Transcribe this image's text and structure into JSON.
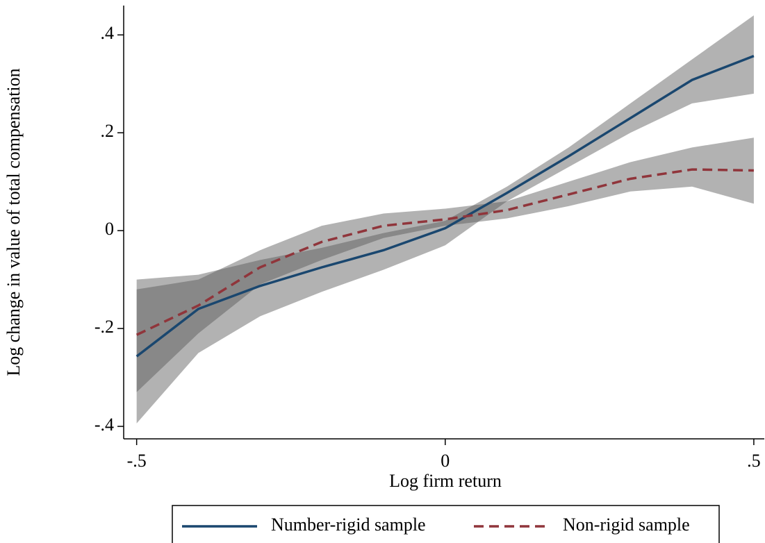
{
  "chart_data": {
    "type": "line",
    "x_label": "Log firm return",
    "y_label": "Log change in value of  total compensation",
    "x": [
      -0.5,
      -0.4,
      -0.3,
      -0.2,
      -0.1,
      0,
      0.1,
      0.2,
      0.3,
      0.4,
      0.5
    ],
    "series": [
      {
        "name": "Number-rigid sample",
        "color": "#1a476f",
        "dash": "solid",
        "values": [
          -0.257,
          -0.16,
          -0.113,
          -0.075,
          -0.04,
          0.005,
          0.077,
          0.152,
          0.23,
          0.308,
          0.357
        ],
        "lower": [
          -0.394,
          -0.25,
          -0.175,
          -0.125,
          -0.08,
          -0.03,
          0.06,
          0.13,
          0.2,
          0.26,
          0.28
        ],
        "upper": [
          -0.1,
          -0.09,
          -0.06,
          -0.035,
          -0.005,
          0.02,
          0.09,
          0.17,
          0.26,
          0.35,
          0.44
        ]
      },
      {
        "name": "Non-rigid sample",
        "color": "#90353b",
        "dash": "dashed",
        "values": [
          -0.213,
          -0.153,
          -0.075,
          -0.023,
          0.01,
          0.023,
          0.042,
          0.074,
          0.106,
          0.125,
          0.123
        ],
        "lower": [
          -0.33,
          -0.21,
          -0.11,
          -0.06,
          -0.015,
          0.01,
          0.025,
          0.05,
          0.08,
          0.09,
          0.055
        ],
        "upper": [
          -0.12,
          -0.1,
          -0.04,
          0.01,
          0.035,
          0.045,
          0.06,
          0.1,
          0.14,
          0.17,
          0.19
        ]
      }
    ],
    "band_color": "#555555",
    "xlim": [
      -0.521,
      0.517
    ],
    "ylim": [
      -0.4255,
      0.46
    ],
    "xticks": [
      {
        "value": -0.5,
        "label": "-.5"
      },
      0,
      {
        "value": 0.5,
        "label": ".5"
      }
    ],
    "yticks": [
      {
        "value": -0.4,
        "label": "-.4"
      },
      {
        "value": -0.2,
        "label": "-.2"
      },
      0,
      {
        "value": 0.2,
        "label": ".2"
      },
      {
        "value": 0.4,
        "label": ".4"
      }
    ],
    "legend": "bottom"
  }
}
